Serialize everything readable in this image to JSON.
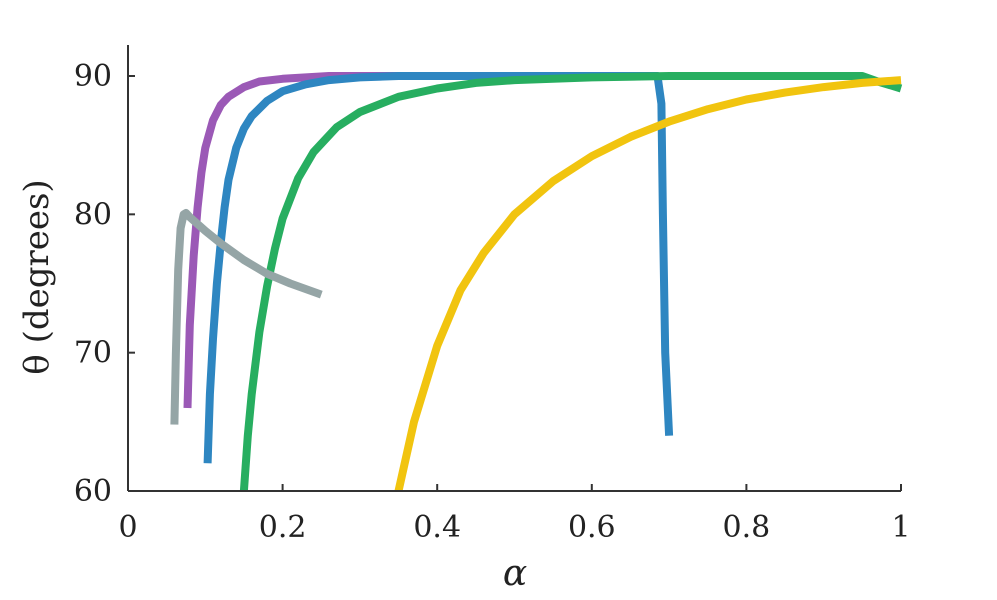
{
  "chart_data": {
    "type": "line",
    "title": "",
    "xlabel": "α",
    "ylabel": "θ (degrees)",
    "xlim": [
      0,
      1
    ],
    "ylim": [
      60,
      90
    ],
    "xticks": [
      0,
      0.2,
      0.4,
      0.6,
      0.8,
      1
    ],
    "xtick_labels": [
      "0",
      "0.2",
      "0.4",
      "0.6",
      "0.8",
      "1"
    ],
    "yticks": [
      60,
      70,
      80,
      90
    ],
    "ytick_labels": [
      "60",
      "70",
      "80",
      "90"
    ],
    "grid": false,
    "legend": "none",
    "series": [
      {
        "color": "#9b59b6",
        "x": [
          0.077,
          0.08,
          0.085,
          0.09,
          0.095,
          0.1,
          0.11,
          0.12,
          0.13,
          0.15,
          0.17,
          0.2,
          0.23,
          0.26,
          0.3,
          0.35,
          0.39
        ],
        "y": [
          66,
          72,
          77,
          80.5,
          83,
          84.8,
          86.8,
          87.9,
          88.5,
          89.2,
          89.6,
          89.8,
          89.9,
          90,
          90,
          90,
          90
        ]
      },
      {
        "color": "#2e86c1",
        "x": [
          0.103,
          0.106,
          0.11,
          0.115,
          0.12,
          0.125,
          0.13,
          0.14,
          0.15,
          0.16,
          0.18,
          0.2,
          0.23,
          0.26,
          0.3,
          0.35,
          0.4,
          0.5,
          0.6,
          0.685,
          0.69,
          0.692,
          0.695,
          0.7
        ],
        "y": [
          62,
          67,
          71,
          75,
          78,
          80.5,
          82.5,
          84.8,
          86.2,
          87.1,
          88.2,
          88.9,
          89.4,
          89.7,
          89.9,
          90,
          90,
          90,
          90,
          90,
          88,
          80,
          70,
          64
        ]
      },
      {
        "color": "#27ae60",
        "x": [
          0.15,
          0.155,
          0.16,
          0.17,
          0.18,
          0.19,
          0.2,
          0.22,
          0.24,
          0.27,
          0.3,
          0.35,
          0.4,
          0.45,
          0.5,
          0.6,
          0.7,
          0.8,
          0.9,
          0.95,
          0.97,
          1.0
        ],
        "y": [
          60,
          64,
          67,
          71.5,
          74.8,
          77.5,
          79.7,
          82.6,
          84.5,
          86.3,
          87.4,
          88.5,
          89.1,
          89.5,
          89.7,
          89.9,
          90,
          90,
          90,
          90,
          89.6,
          89.1
        ]
      },
      {
        "color": "#f1c40f",
        "x": [
          0.35,
          0.37,
          0.4,
          0.43,
          0.46,
          0.5,
          0.55,
          0.6,
          0.65,
          0.7,
          0.75,
          0.8,
          0.85,
          0.9,
          0.95,
          1.0
        ],
        "y": [
          60,
          65,
          70.5,
          74.5,
          77.2,
          80,
          82.4,
          84.2,
          85.6,
          86.7,
          87.6,
          88.3,
          88.8,
          89.2,
          89.5,
          89.7
        ]
      },
      {
        "color": "#95a5a6",
        "x": [
          0.06,
          0.062,
          0.065,
          0.068,
          0.072,
          0.075,
          0.08,
          0.1,
          0.12,
          0.15,
          0.18,
          0.21,
          0.25
        ],
        "y": [
          64.8,
          70,
          76,
          79,
          80,
          80.1,
          79.8,
          78.8,
          77.9,
          76.7,
          75.7,
          75,
          74.2
        ]
      }
    ]
  }
}
